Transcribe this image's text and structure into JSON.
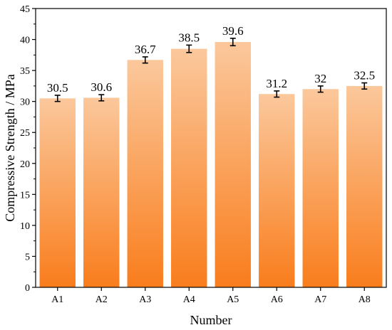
{
  "chart_data": {
    "type": "bar",
    "title": "",
    "xlabel": "Number",
    "ylabel": "Compressive Strength / MPa",
    "categories": [
      "A1",
      "A2",
      "A3",
      "A4",
      "A5",
      "A6",
      "A7",
      "A8"
    ],
    "values": [
      30.5,
      30.6,
      36.7,
      38.5,
      39.6,
      31.2,
      32,
      32.5
    ],
    "data_labels": [
      "30.5",
      "30.6",
      "36.7",
      "38.5",
      "39.6",
      "31.2",
      "32",
      "32.5"
    ],
    "error": [
      0.5,
      0.5,
      0.5,
      0.6,
      0.6,
      0.5,
      0.5,
      0.5
    ],
    "ylim": [
      0,
      45
    ],
    "yticks": [
      "0",
      "5",
      "10",
      "15",
      "20",
      "25",
      "30",
      "35",
      "40",
      "45"
    ],
    "grid": false,
    "legend": "none",
    "bar_gradient": {
      "top": "#fbc89c",
      "bottom": "#f97d1c"
    }
  }
}
